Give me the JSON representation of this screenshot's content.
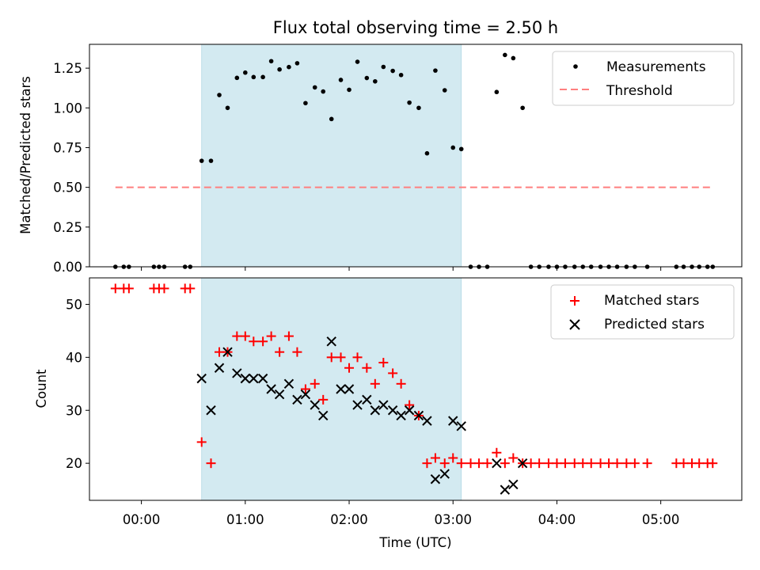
{
  "title": "Flux total observing time = 2.50 h",
  "chart_data": [
    {
      "type": "scatter",
      "ylabel": "Matched/Predicted stars",
      "xlim": [
        -0.5,
        5.78
      ],
      "ylim": [
        0.0,
        1.4
      ],
      "yticks": [
        0.0,
        0.25,
        0.5,
        0.75,
        1.0,
        1.25
      ],
      "ytick_labels": [
        "0.00",
        "0.25",
        "0.50",
        "0.75",
        "1.00",
        "1.25"
      ],
      "highlight_span": [
        0.58,
        3.08
      ],
      "highlight_color": "#d3eaf1",
      "legend_position": "upper right",
      "series": [
        {
          "name": "Measurements",
          "marker": "dot",
          "color": "#000000",
          "x": [
            -0.25,
            -0.17,
            -0.12,
            0.12,
            0.17,
            0.22,
            0.42,
            0.47,
            0.58,
            0.67,
            0.75,
            0.83,
            0.92,
            1.0,
            1.08,
            1.17,
            1.25,
            1.33,
            1.42,
            1.5,
            1.58,
            1.67,
            1.75,
            1.83,
            1.92,
            2.0,
            2.08,
            2.17,
            2.25,
            2.33,
            2.42,
            2.5,
            2.58,
            2.67,
            2.75,
            2.83,
            2.92,
            3.0,
            3.08,
            3.17,
            3.25,
            3.33,
            3.42,
            3.5,
            3.58,
            3.67,
            3.75,
            3.83,
            3.92,
            4.0,
            4.08,
            4.17,
            4.25,
            4.33,
            4.42,
            4.5,
            4.58,
            4.67,
            4.75,
            4.87,
            5.15,
            5.22,
            5.3,
            5.37,
            5.45,
            5.5
          ],
          "y": [
            0,
            0,
            0,
            0,
            0,
            0,
            0,
            0,
            0.667,
            0.667,
            1.081,
            1.0,
            1.189,
            1.222,
            1.194,
            1.194,
            1.294,
            1.242,
            1.257,
            1.281,
            1.03,
            1.129,
            1.103,
            0.93,
            1.176,
            1.114,
            1.29,
            1.188,
            1.167,
            1.258,
            1.233,
            1.207,
            1.033,
            1.0,
            0.714,
            1.235,
            1.111,
            0.75,
            0.741,
            0,
            0,
            0,
            1.1,
            1.333,
            1.313,
            1.0,
            0,
            0,
            0,
            0,
            0,
            0,
            0,
            0,
            0,
            0,
            0,
            0,
            0,
            0,
            0,
            0,
            0,
            0,
            0,
            0
          ]
        },
        {
          "name": "Threshold",
          "marker": "dashed-line",
          "color": "#ff7f7f",
          "x": [
            -0.25,
            5.5
          ],
          "y": [
            0.5,
            0.5
          ]
        }
      ]
    },
    {
      "type": "scatter",
      "xlabel": "Time (UTC)",
      "ylabel": "Count",
      "xlim": [
        -0.5,
        5.78
      ],
      "ylim": [
        13,
        55
      ],
      "yticks": [
        20,
        30,
        40,
        50
      ],
      "ytick_labels": [
        "20",
        "30",
        "40",
        "50"
      ],
      "xticks": [
        0,
        1,
        2,
        3,
        4,
        5
      ],
      "xtick_labels": [
        "00:00",
        "01:00",
        "02:00",
        "03:00",
        "04:00",
        "05:00"
      ],
      "highlight_span": [
        0.58,
        3.08
      ],
      "highlight_color": "#d3eaf1",
      "legend_position": "upper right",
      "series": [
        {
          "name": "Matched stars",
          "marker": "plus",
          "color": "#ff0000",
          "x": [
            -0.25,
            -0.17,
            -0.12,
            0.12,
            0.17,
            0.22,
            0.42,
            0.47,
            0.58,
            0.67,
            0.75,
            0.83,
            0.92,
            1.0,
            1.08,
            1.17,
            1.25,
            1.33,
            1.42,
            1.5,
            1.58,
            1.67,
            1.75,
            1.83,
            1.92,
            2.0,
            2.08,
            2.17,
            2.25,
            2.33,
            2.42,
            2.5,
            2.58,
            2.67,
            2.75,
            2.83,
            2.92,
            3.0,
            3.08,
            3.17,
            3.25,
            3.33,
            3.42,
            3.5,
            3.58,
            3.67,
            3.75,
            3.83,
            3.92,
            4.0,
            4.08,
            4.17,
            4.25,
            4.33,
            4.42,
            4.5,
            4.58,
            4.67,
            4.75,
            4.87,
            5.15,
            5.22,
            5.3,
            5.37,
            5.45,
            5.5
          ],
          "y": [
            53,
            53,
            53,
            53,
            53,
            53,
            53,
            53,
            24,
            20,
            41,
            41,
            44,
            44,
            43,
            43,
            44,
            41,
            44,
            41,
            34,
            35,
            32,
            40,
            40,
            38,
            40,
            38,
            35,
            39,
            37,
            35,
            31,
            29,
            20,
            21,
            20,
            21,
            20,
            20,
            20,
            20,
            22,
            20,
            21,
            20,
            20,
            20,
            20,
            20,
            20,
            20,
            20,
            20,
            20,
            20,
            20,
            20,
            20,
            20,
            20,
            20,
            20,
            20,
            20,
            20
          ]
        },
        {
          "name": "Predicted stars",
          "marker": "x",
          "color": "#000000",
          "x": [
            0.58,
            0.67,
            0.75,
            0.83,
            0.92,
            1.0,
            1.08,
            1.17,
            1.25,
            1.33,
            1.42,
            1.5,
            1.58,
            1.67,
            1.75,
            1.83,
            1.92,
            2.0,
            2.08,
            2.17,
            2.25,
            2.33,
            2.42,
            2.5,
            2.58,
            2.67,
            2.75,
            2.83,
            2.92,
            3.0,
            3.08,
            3.42,
            3.5,
            3.58,
            3.67
          ],
          "y": [
            36,
            30,
            38,
            41,
            37,
            36,
            36,
            36,
            34,
            33,
            35,
            32,
            33,
            31,
            29,
            43,
            34,
            34,
            31,
            32,
            30,
            31,
            30,
            29,
            30,
            29,
            28,
            17,
            18,
            28,
            27,
            20,
            15,
            16,
            20
          ]
        }
      ]
    }
  ]
}
